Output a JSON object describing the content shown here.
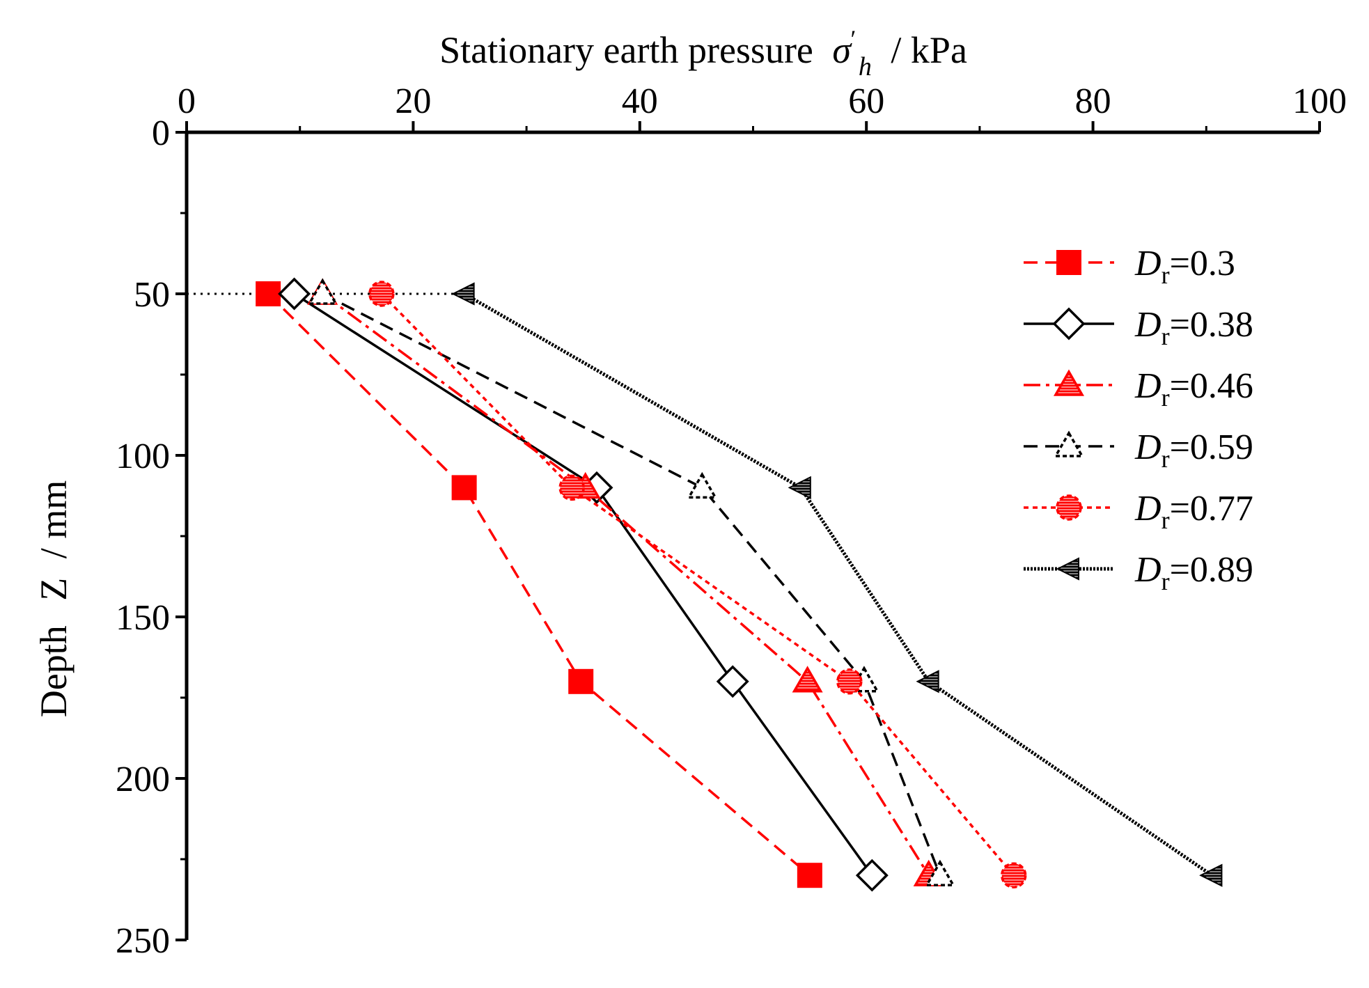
{
  "chart_data": {
    "type": "line",
    "title": "",
    "xlabel": {
      "prefix": "Stationary earth pressure",
      "symbol": "σ",
      "prime": "′",
      "subscript": "h",
      "suffix": "/ kPa"
    },
    "ylabel": {
      "prefix": "Depth",
      "symbol": "Z",
      "suffix": "/ mm"
    },
    "xlim": [
      0,
      100
    ],
    "ylim": [
      0,
      250
    ],
    "y_inverted": true,
    "x_axis_position": "top",
    "x_ticks": [
      0,
      20,
      40,
      60,
      80,
      100
    ],
    "y_ticks": [
      0,
      50,
      100,
      150,
      200,
      250
    ],
    "grid": false,
    "legend_position": "right",
    "reference_line": {
      "depth": 50,
      "x_from": 0,
      "x_to": 25
    },
    "series": [
      {
        "name": "Dr=0.3",
        "symbol": "D",
        "subscript": "r",
        "value_label": "=0.3",
        "color": "#ff0000",
        "line": "dash",
        "marker": "square-filled",
        "points": [
          [
            7.2,
            50
          ],
          [
            24.5,
            110
          ],
          [
            34.8,
            170
          ],
          [
            55.0,
            230
          ]
        ]
      },
      {
        "name": "Dr=0.38",
        "symbol": "D",
        "subscript": "r",
        "value_label": "=0.38",
        "color": "#000000",
        "line": "solid",
        "marker": "diamond-open",
        "points": [
          [
            9.5,
            50
          ],
          [
            36.2,
            110
          ],
          [
            48.2,
            170
          ],
          [
            60.5,
            230
          ]
        ]
      },
      {
        "name": "Dr=0.46",
        "symbol": "D",
        "subscript": "r",
        "value_label": "=0.46",
        "color": "#ff0000",
        "line": "dashdot",
        "marker": "triangle-hatched",
        "points": [
          [
            12.0,
            50
          ],
          [
            35.2,
            110
          ],
          [
            54.8,
            170
          ],
          [
            65.5,
            230
          ]
        ]
      },
      {
        "name": "Dr=0.59",
        "symbol": "D",
        "subscript": "r",
        "value_label": "=0.59",
        "color": "#000000",
        "line": "dash",
        "marker": "triangle-open",
        "points": [
          [
            12.0,
            50
          ],
          [
            45.5,
            110
          ],
          [
            59.8,
            170
          ],
          [
            66.5,
            230
          ]
        ]
      },
      {
        "name": "Dr=0.77",
        "symbol": "D",
        "subscript": "r",
        "value_label": "=0.77",
        "color": "#ff0000",
        "line": "dot",
        "marker": "circle-hatched",
        "points": [
          [
            17.2,
            50
          ],
          [
            34.0,
            110
          ],
          [
            58.5,
            170
          ],
          [
            73.0,
            230
          ]
        ]
      },
      {
        "name": "Dr=0.89",
        "symbol": "D",
        "subscript": "r",
        "value_label": "=0.89",
        "color": "#000000",
        "line": "densedot",
        "marker": "left-triangle-hatched",
        "points": [
          [
            24.5,
            50
          ],
          [
            54.2,
            110
          ],
          [
            65.5,
            170
          ],
          [
            90.5,
            230
          ]
        ]
      }
    ]
  }
}
